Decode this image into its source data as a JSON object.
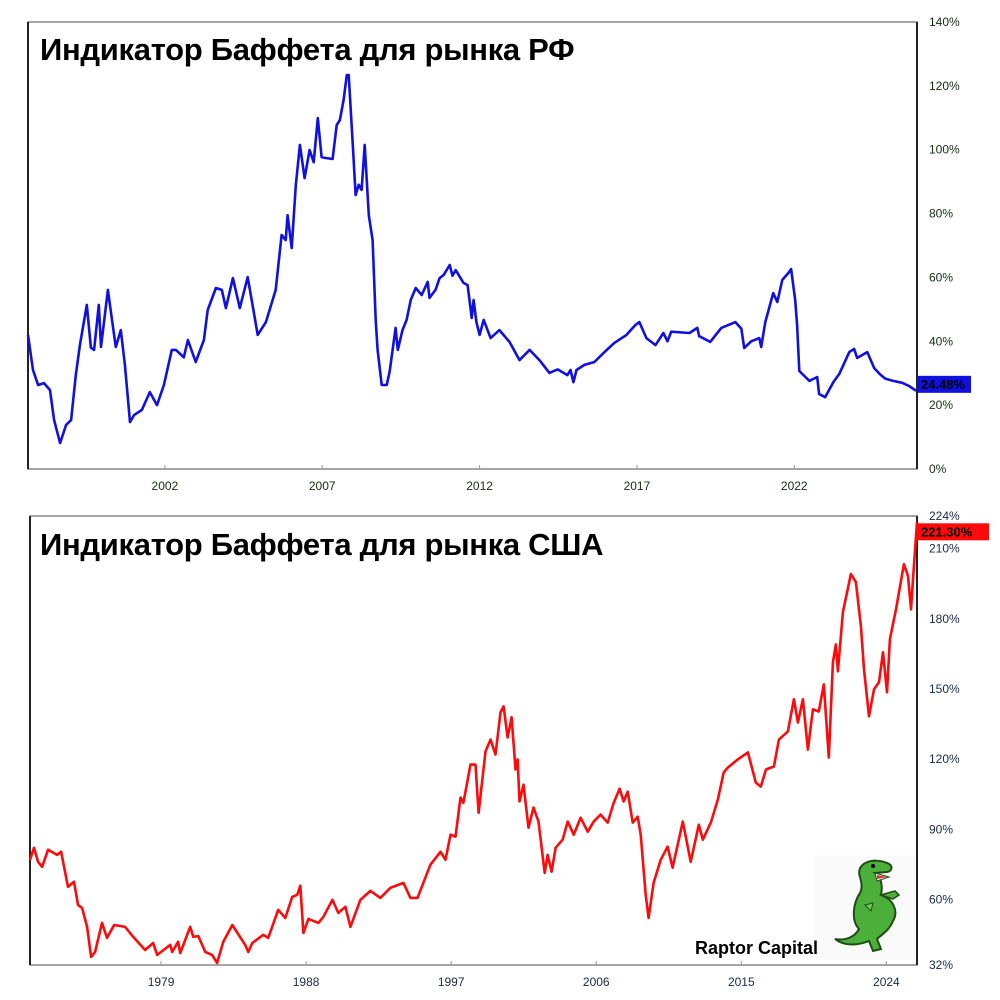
{
  "chart_data": [
    {
      "type": "line",
      "title": "Индикатор Баффета для рынка РФ",
      "xlim": [
        1997.65,
        2025.9
      ],
      "ylim": [
        0,
        140
      ],
      "x_ticks": [
        2002,
        2007,
        2012,
        2017,
        2022
      ],
      "y_ticks": [
        "0%",
        "20%",
        "40%",
        "60%",
        "80%",
        "100%",
        "120%",
        "140%"
      ],
      "y_tick_values": [
        0,
        20,
        40,
        60,
        80,
        100,
        120,
        140
      ],
      "grid": false,
      "line_color": "#1010e0",
      "last_value_label": "24.48%",
      "series": [
        {
          "x": [
            1997.65,
            1997.81,
            1997.97,
            1998.16,
            1998.35,
            1998.48,
            1998.67,
            1998.86,
            1999.02,
            1999.17,
            1999.3,
            1999.52,
            1999.65,
            1999.75,
            1999.9,
            1999.97,
            2000.19,
            2000.32,
            2000.44,
            2000.6,
            2000.73,
            2000.89,
            2001.02,
            2001.27,
            2001.52,
            2001.75,
            2001.97,
            2002.22,
            2002.35,
            2002.6,
            2002.73,
            2002.98,
            2003.24,
            2003.36,
            2003.62,
            2003.81,
            2003.94,
            2004.16,
            2004.38,
            2004.63,
            2004.76,
            2004.95,
            2005.21,
            2005.52,
            2005.71,
            2005.84,
            2005.9,
            2006.03,
            2006.16,
            2006.29,
            2006.44,
            2006.6,
            2006.73,
            2006.86,
            2006.98,
            2007.11,
            2007.33,
            2007.46,
            2007.56,
            2007.68,
            2007.78,
            2007.84,
            2007.97,
            2008.06,
            2008.16,
            2008.25,
            2008.35,
            2008.48,
            2008.6,
            2008.7,
            2008.76,
            2008.89,
            2009.05,
            2009.14,
            2009.33,
            2009.4,
            2009.55,
            2009.68,
            2009.81,
            2009.97,
            2010.16,
            2010.35,
            2010.41,
            2010.6,
            2010.73,
            2010.86,
            2011.05,
            2011.14,
            2011.24,
            2011.49,
            2011.62,
            2011.68,
            2011.75,
            2011.81,
            2011.9,
            2012.0,
            2012.13,
            2012.35,
            2012.63,
            2012.95,
            2013.27,
            2013.59,
            2013.9,
            2014.22,
            2014.48,
            2014.79,
            2014.89,
            2014.98,
            2015.08,
            2015.33,
            2015.65,
            2015.97,
            2016.28,
            2016.67,
            2016.95,
            2017.08,
            2017.3,
            2017.59,
            2017.84,
            2017.97,
            2018.09,
            2018.67,
            2018.92,
            2018.98,
            2019.33,
            2019.68,
            2020.13,
            2020.32,
            2020.41,
            2020.63,
            2020.89,
            2020.95,
            2021.08,
            2021.33,
            2021.46,
            2021.62,
            2021.84,
            2021.9,
            2022.03,
            2022.09,
            2022.16,
            2022.48,
            2022.73,
            2022.79,
            2022.98,
            2023.24,
            2023.43,
            2023.75,
            2023.9,
            2024.0,
            2024.32,
            2024.54,
            2024.73,
            2024.89,
            2025.14,
            2025.43,
            2025.65,
            2025.87
          ],
          "y": [
            42.0,
            31.0,
            26.3,
            26.9,
            24.7,
            15.3,
            8.1,
            13.8,
            15.3,
            29.4,
            38.8,
            51.4,
            38.0,
            37.3,
            51.4,
            38.2,
            56.1,
            46.7,
            38.2,
            43.5,
            32.6,
            14.7,
            16.9,
            18.5,
            24.1,
            20.0,
            26.3,
            37.3,
            37.3,
            35.0,
            40.4,
            33.5,
            40.4,
            49.8,
            56.7,
            56.1,
            50.4,
            59.8,
            50.4,
            60.1,
            52.9,
            42.0,
            46.0,
            56.1,
            73.3,
            71.7,
            79.5,
            69.2,
            88.9,
            101.5,
            91.1,
            99.9,
            96.1,
            109.9,
            97.7,
            97.4,
            97.1,
            107.7,
            109.3,
            115.6,
            123.4,
            123.4,
            101.5,
            85.8,
            89.0,
            87.4,
            101.5,
            79.5,
            71.7,
            46.7,
            37.3,
            26.3,
            26.3,
            30.4,
            44.2,
            37.3,
            43.5,
            46.7,
            52.9,
            56.7,
            54.5,
            58.6,
            53.6,
            56.1,
            59.8,
            60.8,
            63.9,
            60.5,
            62.3,
            58.3,
            57.6,
            52.9,
            47.3,
            52.9,
            46.0,
            42.0,
            46.7,
            41.0,
            43.5,
            39.8,
            34.1,
            37.3,
            34.1,
            30.1,
            31.2,
            29.4,
            31.0,
            27.2,
            31.0,
            32.6,
            33.5,
            36.6,
            39.5,
            42.0,
            45.1,
            46.0,
            41.0,
            38.8,
            42.6,
            40.0,
            43.0,
            42.6,
            44.2,
            41.6,
            39.8,
            44.2,
            46.0,
            43.9,
            37.9,
            40.0,
            41.0,
            38.2,
            46.0,
            55.1,
            52.3,
            59.2,
            61.7,
            62.6,
            52.9,
            45.1,
            30.7,
            27.6,
            28.8,
            23.5,
            22.5,
            27.2,
            29.8,
            36.6,
            37.6,
            34.8,
            36.6,
            31.6,
            29.6,
            28.3,
            27.6,
            27.0,
            26.0,
            24.48
          ]
        }
      ]
    },
    {
      "type": "line",
      "title": "Индикатор Баффета для рынка США",
      "xlim": [
        1970.87,
        2025.9
      ],
      "ylim": [
        32,
        224
      ],
      "x_ticks": [
        1979,
        1988,
        1997,
        2006,
        2015,
        2024
      ],
      "y_ticks": [
        "32%",
        "60%",
        "90%",
        "120%",
        "150%",
        "180%",
        "210%",
        "224%"
      ],
      "y_tick_values": [
        32,
        60,
        90,
        120,
        150,
        180,
        210,
        224
      ],
      "grid": false,
      "line_color": "#ff0a0a",
      "last_value_label": "221.30%",
      "series": [
        {
          "x": [
            1970.87,
            1971.12,
            1971.37,
            1971.62,
            1971.99,
            1972.55,
            1972.8,
            1973.23,
            1973.6,
            1973.85,
            1974.1,
            1974.41,
            1974.66,
            1974.91,
            1975.34,
            1975.65,
            1976.09,
            1976.77,
            1977.27,
            1978.01,
            1978.51,
            1978.76,
            1979.57,
            1979.69,
            1980.06,
            1980.19,
            1980.81,
            1981.0,
            1981.31,
            1981.74,
            1982.17,
            1982.48,
            1982.86,
            1983.42,
            1984.22,
            1984.41,
            1984.66,
            1985.34,
            1985.65,
            1986.27,
            1986.71,
            1987.14,
            1987.45,
            1987.64,
            1987.83,
            1988.14,
            1988.76,
            1989.07,
            1989.63,
            1990.0,
            1990.44,
            1990.75,
            1991.37,
            1991.99,
            1992.61,
            1993.23,
            1994.04,
            1994.47,
            1994.91,
            1995.71,
            1996.34,
            1996.65,
            1996.96,
            1997.27,
            1997.58,
            1997.76,
            1998.2,
            1998.51,
            1998.7,
            1999.13,
            1999.44,
            1999.75,
            2000.06,
            2000.25,
            2000.5,
            2000.75,
            2000.99,
            2001.12,
            2001.24,
            2001.49,
            2001.8,
            2002.11,
            2002.42,
            2002.8,
            2002.98,
            2003.23,
            2003.48,
            2003.91,
            2004.23,
            2004.6,
            2005.03,
            2005.47,
            2005.84,
            2006.27,
            2006.71,
            2007.08,
            2007.45,
            2007.7,
            2007.95,
            2008.26,
            2008.57,
            2008.76,
            2009.07,
            2009.25,
            2009.56,
            2010.0,
            2010.43,
            2010.74,
            2011.37,
            2011.86,
            2012.36,
            2012.61,
            2013.11,
            2013.54,
            2013.91,
            2014.16,
            2014.78,
            2015.41,
            2015.9,
            2016.21,
            2016.53,
            2017.02,
            2017.33,
            2017.89,
            2018.26,
            2018.51,
            2018.82,
            2019.13,
            2019.44,
            2019.81,
            2020.12,
            2020.43,
            2020.68,
            2020.87,
            2020.99,
            2021.3,
            2021.8,
            2022.11,
            2022.42,
            2022.61,
            2022.92,
            2023.23,
            2023.54,
            2023.79,
            2024.04,
            2024.22,
            2024.6,
            2025.09,
            2025.34,
            2025.53,
            2025.71,
            2025.9
          ],
          "y": [
            77.0,
            82.1,
            76.1,
            74.0,
            81.3,
            79.1,
            80.4,
            65.4,
            67.6,
            57.7,
            56.4,
            48.3,
            35.4,
            37.6,
            50.0,
            43.6,
            49.1,
            48.3,
            44.0,
            38.4,
            41.4,
            36.3,
            40.6,
            37.6,
            41.9,
            37.1,
            48.3,
            44.0,
            44.4,
            37.6,
            36.3,
            32.9,
            41.9,
            49.1,
            40.6,
            37.6,
            41.4,
            44.9,
            43.6,
            55.6,
            52.1,
            61.1,
            62.0,
            65.9,
            45.7,
            51.7,
            50.0,
            52.6,
            59.9,
            54.3,
            56.9,
            48.3,
            59.9,
            63.7,
            60.7,
            65.0,
            67.1,
            60.7,
            60.7,
            74.9,
            80.4,
            77.0,
            87.7,
            86.9,
            103.6,
            101.4,
            117.7,
            117.7,
            97.1,
            123.3,
            128.4,
            122.0,
            140.0,
            142.6,
            129.3,
            137.9,
            115.6,
            119.9,
            101.9,
            109.1,
            90.7,
            99.3,
            93.3,
            71.4,
            79.1,
            71.9,
            82.1,
            85.6,
            93.3,
            87.7,
            95.0,
            89.0,
            93.3,
            96.3,
            92.9,
            101.4,
            107.4,
            101.9,
            106.1,
            92.9,
            95.4,
            87.7,
            62.0,
            52.1,
            67.1,
            77.0,
            82.6,
            73.6,
            93.3,
            76.1,
            92.0,
            85.6,
            92.9,
            102.7,
            114.3,
            116.4,
            119.9,
            122.9,
            110.0,
            108.3,
            115.6,
            116.9,
            128.4,
            131.9,
            145.6,
            135.7,
            145.6,
            124.1,
            141.3,
            140.4,
            152.0,
            120.7,
            161.4,
            169.1,
            157.6,
            182.9,
            199.2,
            195.7,
            176.9,
            158.4,
            138.3,
            149.9,
            152.9,
            165.7,
            148.6,
            171.3,
            184.1,
            203.4,
            198.3,
            184.1,
            202.6,
            221.3
          ]
        }
      ]
    }
  ],
  "logo": {
    "brand_name": "Raptor Capital",
    "icon": "raptor-dinosaur-icon",
    "color": "#4caf3a"
  }
}
